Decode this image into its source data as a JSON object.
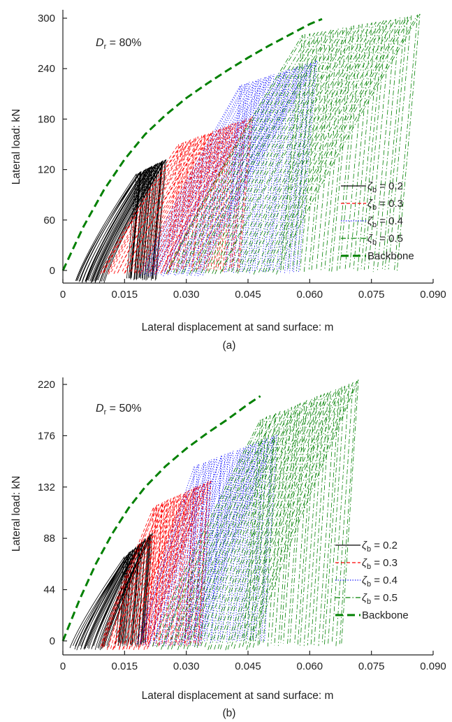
{
  "chart_data": [
    {
      "id": "a",
      "type": "line",
      "panel_label": "(a)",
      "annotation": {
        "symbol": "D",
        "subscript": "r",
        "text": " = 80%"
      },
      "xlabel": "Lateral displacement at sand surface: m",
      "ylabel": "Lateral load: kN",
      "xlim": [
        0,
        0.09
      ],
      "ylim": [
        -15,
        310
      ],
      "xticks": [
        "0",
        "0.015",
        "0.030",
        "0.045",
        "0.060",
        "0.075",
        "0.090"
      ],
      "xtick_values": [
        0,
        0.015,
        0.03,
        0.045,
        0.06,
        0.075,
        0.09
      ],
      "yticks": [
        "0",
        "60",
        "120",
        "180",
        "240",
        "300"
      ],
      "ytick_values": [
        0,
        60,
        120,
        180,
        240,
        300
      ],
      "legend_position": "right",
      "series": [
        {
          "name": "ζb = 0.2",
          "symbol": "ζ",
          "subscript": "b",
          "value_text": " = 0.2",
          "color": "#000000",
          "style": "solid",
          "cycles": {
            "x_start_min": 0.003,
            "x_start_max": 0.01,
            "x_end_min": 0.018,
            "x_end_max": 0.025,
            "y_min": -15,
            "y_max_start": 115,
            "y_max_end": 132
          }
        },
        {
          "name": "ζb = 0.3",
          "symbol": "ζ",
          "subscript": "b",
          "value_text": " = 0.3",
          "color": "#ff0000",
          "style": "dashed",
          "cycles": {
            "x_start_min": 0.009,
            "x_start_max": 0.026,
            "x_end_min": 0.028,
            "x_end_max": 0.046,
            "y_min": -5,
            "y_max_start": 150,
            "y_max_end": 183
          }
        },
        {
          "name": "ζb = 0.4",
          "symbol": "ζ",
          "subscript": "b",
          "value_text": " = 0.4",
          "color": "#0000ff",
          "style": "dotted",
          "cycles": {
            "x_start_min": 0.019,
            "x_start_max": 0.034,
            "x_end_min": 0.043,
            "x_end_max": 0.062,
            "y_min": -7,
            "y_max_start": 220,
            "y_max_end": 250
          }
        },
        {
          "name": "ζb = 0.5",
          "symbol": "ζ",
          "subscript": "b",
          "value_text": " = 0.5",
          "color": "#008000",
          "style": "dashdot",
          "cycles": {
            "x_start_min": 0.025,
            "x_start_max": 0.052,
            "x_end_min": 0.058,
            "x_end_max": 0.087,
            "y_min": -5,
            "y_max_start": 280,
            "y_max_end": 305
          }
        },
        {
          "name": "Backbone",
          "color": "#008000",
          "style": "long-dash",
          "backbone": true,
          "points": [
            [
              0,
              0
            ],
            [
              0.005,
              52
            ],
            [
              0.01,
              96
            ],
            [
              0.015,
              132
            ],
            [
              0.02,
              162
            ],
            [
              0.025,
              185
            ],
            [
              0.03,
              205
            ],
            [
              0.035,
              222
            ],
            [
              0.04,
              238
            ],
            [
              0.045,
              253
            ],
            [
              0.05,
              267
            ],
            [
              0.055,
              280
            ],
            [
              0.06,
              293
            ],
            [
              0.063,
              299
            ]
          ]
        }
      ]
    },
    {
      "id": "b",
      "type": "line",
      "panel_label": "(b)",
      "annotation": {
        "symbol": "D",
        "subscript": "r",
        "text": " = 50%"
      },
      "xlabel": "Lateral displacement at sand surface: m",
      "ylabel": "Lateral load: kN",
      "xlim": [
        0,
        0.09
      ],
      "ylim": [
        -12,
        226
      ],
      "xticks": [
        "0",
        "0.015",
        "0.030",
        "0.045",
        "0.060",
        "0.075",
        "0.090"
      ],
      "xtick_values": [
        0,
        0.015,
        0.03,
        0.045,
        0.06,
        0.075,
        0.09
      ],
      "yticks": [
        "0",
        "44",
        "88",
        "132",
        "176",
        "220"
      ],
      "ytick_values": [
        0,
        44,
        88,
        132,
        176,
        220
      ],
      "legend_position": "right",
      "series": [
        {
          "name": "ζb = 0.2",
          "symbol": "ζ",
          "subscript": "b",
          "value_text": " = 0.2",
          "color": "#000000",
          "style": "solid",
          "cycles": {
            "x_start_min": 0.002,
            "x_start_max": 0.011,
            "x_end_min": 0.015,
            "x_end_max": 0.022,
            "y_min": -8,
            "y_max_start": 72,
            "y_max_end": 93
          }
        },
        {
          "name": "ζb = 0.3",
          "symbol": "ζ",
          "subscript": "b",
          "value_text": " = 0.3",
          "color": "#ff0000",
          "style": "dashed",
          "cycles": {
            "x_start_min": 0.009,
            "x_start_max": 0.021,
            "x_end_min": 0.022,
            "x_end_max": 0.036,
            "y_min": -8,
            "y_max_start": 115,
            "y_max_end": 138
          }
        },
        {
          "name": "ζb = 0.4",
          "symbol": "ζ",
          "subscript": "b",
          "value_text": " = 0.4",
          "color": "#0000ff",
          "style": "dotted",
          "cycles": {
            "x_start_min": 0.018,
            "x_start_max": 0.033,
            "x_end_min": 0.032,
            "x_end_max": 0.052,
            "y_min": -5,
            "y_max_start": 150,
            "y_max_end": 177
          }
        },
        {
          "name": "ζb = 0.5",
          "symbol": "ζ",
          "subscript": "b",
          "value_text": " = 0.5",
          "color": "#008000",
          "style": "dashdot",
          "cycles": {
            "x_start_min": 0.022,
            "x_start_max": 0.046,
            "x_end_min": 0.048,
            "x_end_max": 0.072,
            "y_min": -8,
            "y_max_start": 190,
            "y_max_end": 224
          }
        },
        {
          "name": "Backbone",
          "color": "#008000",
          "style": "long-dash",
          "backbone": true,
          "points": [
            [
              0,
              0
            ],
            [
              0.004,
              35
            ],
            [
              0.008,
              66
            ],
            [
              0.012,
              92
            ],
            [
              0.016,
              114
            ],
            [
              0.02,
              132
            ],
            [
              0.025,
              150
            ],
            [
              0.03,
              165
            ],
            [
              0.035,
              178
            ],
            [
              0.04,
              190
            ],
            [
              0.045,
              203
            ],
            [
              0.048,
              210
            ]
          ]
        }
      ]
    }
  ]
}
